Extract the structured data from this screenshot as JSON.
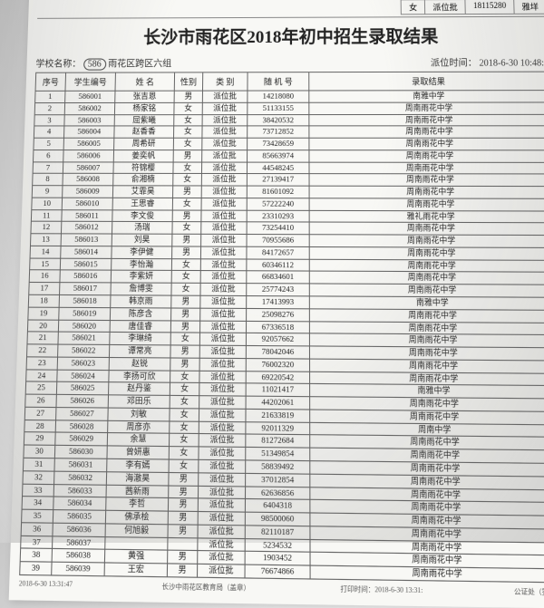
{
  "top": {
    "c1": "女",
    "c2": "派位批",
    "c3": "18115280",
    "c4": "雅垟"
  },
  "title": "长沙市雨花区2018年初中招生录取结果",
  "school_label": "学校名称：",
  "school_code": "586",
  "school_name": "雨花区跨区六组",
  "time_label": "派位时间：",
  "time_value": "2018-6-30 10:48:1",
  "headers": [
    "序号",
    "学生编号",
    "姓 名",
    "性别",
    "类 别",
    "随 机 号",
    "录取结果"
  ],
  "rows": [
    [
      "1",
      "586001",
      "张吉恩",
      "男",
      "派位批",
      "14218080",
      "南雅中学"
    ],
    [
      "2",
      "586002",
      "杨家铭",
      "女",
      "派位批",
      "51133155",
      "周南雨花中学"
    ],
    [
      "3",
      "586003",
      "屈紫曦",
      "女",
      "派位批",
      "38420532",
      "周南雨花中学"
    ],
    [
      "4",
      "586004",
      "赵香香",
      "女",
      "派位批",
      "73712852",
      "周南雨花中学"
    ],
    [
      "5",
      "586005",
      "周希研",
      "女",
      "派位批",
      "73428659",
      "周南雨花中学"
    ],
    [
      "6",
      "586006",
      "姜奕帆",
      "男",
      "派位批",
      "85663974",
      "周南雨花中学"
    ],
    [
      "7",
      "586007",
      "符锦樱",
      "女",
      "派位批",
      "44548245",
      "周南雨花中学"
    ],
    [
      "8",
      "586008",
      "俞湘楠",
      "女",
      "派位批",
      "27139417",
      "周南雨花中学"
    ],
    [
      "9",
      "586009",
      "艾霏昊",
      "男",
      "派位批",
      "81601092",
      "周南雨花中学"
    ],
    [
      "10",
      "586010",
      "王思睿",
      "女",
      "派位批",
      "57222240",
      "周南雨花中学"
    ],
    [
      "11",
      "586011",
      "李文俊",
      "男",
      "派位批",
      "23310293",
      "雅礼雨花中学"
    ],
    [
      "12",
      "586012",
      "汤瑞",
      "女",
      "派位批",
      "73254410",
      "周南雨花中学"
    ],
    [
      "13",
      "586013",
      "刘昊",
      "男",
      "派位批",
      "70955686",
      "周南雨花中学"
    ],
    [
      "14",
      "586014",
      "李伊健",
      "男",
      "派位批",
      "84172657",
      "周南雨花中学"
    ],
    [
      "15",
      "586015",
      "李怡瀚",
      "女",
      "派位批",
      "60346112",
      "周南雨花中学"
    ],
    [
      "16",
      "586016",
      "李紫妍",
      "女",
      "派位批",
      "66834601",
      "周南雨花中学"
    ],
    [
      "17",
      "586017",
      "詹博雯",
      "女",
      "派位批",
      "25774243",
      "周南雨花中学"
    ],
    [
      "18",
      "586018",
      "韩京雨",
      "男",
      "派位批",
      "17413993",
      "南雅中学"
    ],
    [
      "19",
      "586019",
      "陈彦含",
      "男",
      "派位批",
      "25098276",
      "周南雨花中学"
    ],
    [
      "20",
      "586020",
      "唐佳睿",
      "男",
      "派位批",
      "67336518",
      "周南雨花中学"
    ],
    [
      "21",
      "586021",
      "李琳绮",
      "女",
      "派位批",
      "92057662",
      "周南雨花中学"
    ],
    [
      "22",
      "586022",
      "谭常亮",
      "男",
      "派位批",
      "78042046",
      "周南雨花中学"
    ],
    [
      "23",
      "586023",
      "赵锐",
      "男",
      "派位批",
      "76002320",
      "周南雨花中学"
    ],
    [
      "24",
      "586024",
      "李扬可欣",
      "女",
      "派位批",
      "69220542",
      "周南雨花中学"
    ],
    [
      "25",
      "586025",
      "赵丹鉴",
      "女",
      "派位批",
      "11021417",
      "南雅中学"
    ],
    [
      "26",
      "586026",
      "邓田乐",
      "女",
      "派位批",
      "44202061",
      "周南雨花中学"
    ],
    [
      "27",
      "586027",
      "刘敏",
      "女",
      "派位批",
      "21633819",
      "周南雨花中学"
    ],
    [
      "28",
      "586028",
      "周彦亦",
      "女",
      "派位批",
      "92011329",
      "周南中学"
    ],
    [
      "29",
      "586029",
      "余慧",
      "女",
      "派位批",
      "81272684",
      "周南雨花中学"
    ],
    [
      "30",
      "586030",
      "曾妍惠",
      "女",
      "派位批",
      "51349854",
      "周南雨花中学"
    ],
    [
      "31",
      "586031",
      "李有嫣",
      "女",
      "派位批",
      "58839492",
      "周南雨花中学"
    ],
    [
      "32",
      "586032",
      "海澈昊",
      "男",
      "派位批",
      "37012854",
      "周南雨花中学"
    ],
    [
      "33",
      "586033",
      "茜新雨",
      "男",
      "派位批",
      "62636856",
      "周南雨花中学"
    ],
    [
      "34",
      "586034",
      "李哲",
      "男",
      "派位批",
      "6404318",
      "周南雨花中学"
    ],
    [
      "35",
      "586035",
      "佛承桧",
      "男",
      "派位批",
      "98500060",
      "周南雨花中学"
    ],
    [
      "36",
      "586036",
      "何旭毅",
      "男",
      "派位批",
      "82110187",
      "周南雨花中学"
    ],
    [
      "37",
      "586037",
      "",
      "",
      "派位批",
      "5234532",
      "周南雨花中学"
    ],
    [
      "38",
      "586038",
      "黄强",
      "男",
      "派位批",
      "1903452",
      "周南雨花中学"
    ],
    [
      "39",
      "586039",
      "王宏",
      "男",
      "派位批",
      "76674866",
      "周南雨花中学"
    ]
  ],
  "footer": {
    "left": "2018-6-30 13:31:47",
    "mid": "长沙中雨花区教育局（盖章）",
    "right1": "打印时间：2018-6-30 13:31:",
    "right2": "公证处（签章）："
  }
}
